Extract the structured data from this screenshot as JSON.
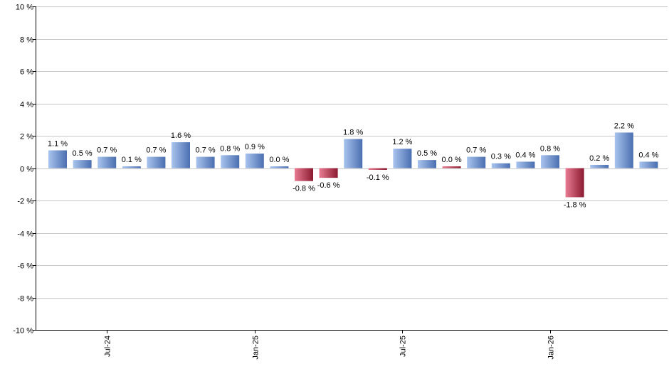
{
  "chart_data": {
    "type": "bar",
    "title": "",
    "xlabel": "",
    "ylabel": "",
    "ylim": [
      -10,
      10
    ],
    "yticks": [
      10,
      8,
      6,
      4,
      2,
      0,
      -2,
      -4,
      -6,
      -8,
      -10
    ],
    "ytick_labels": [
      "10 %",
      "8 %",
      "6 %",
      "4 %",
      "2 %",
      "0 %",
      "-2 %",
      "-4 %",
      "-6 %",
      "-8 %",
      "-10 %"
    ],
    "grid": true,
    "xtick_labels": [
      {
        "label": "Jul-24",
        "index": 2
      },
      {
        "label": "Jan-25",
        "index": 8
      },
      {
        "label": "Jul-25",
        "index": 14
      },
      {
        "label": "Jan-26",
        "index": 20
      }
    ],
    "values": [
      1.1,
      0.5,
      0.7,
      0.1,
      0.7,
      1.6,
      0.7,
      0.8,
      0.9,
      0.0,
      -0.8,
      -0.6,
      1.8,
      -0.1,
      1.2,
      0.5,
      0.0,
      0.7,
      0.3,
      0.4,
      0.8,
      -1.8,
      0.2,
      2.2,
      0.4
    ],
    "value_labels": [
      "1.1 %",
      "0.5 %",
      "0.7 %",
      "0.1 %",
      "0.7 %",
      "1.6 %",
      "0.7 %",
      "0.8 %",
      "0.9 %",
      "0.0 %",
      "-0.8 %",
      "-0.6 %",
      "1.8 %",
      "-0.1 %",
      "1.2 %",
      "0.5 %",
      "0.0 %",
      "0.7 %",
      "0.3 %",
      "0.4 %",
      "0.8 %",
      "-1.8 %",
      "0.2 %",
      "2.2 %",
      "0.4 %"
    ],
    "colors": {
      "positive_light": "#a9c4ee",
      "positive_dark": "#4a6eb0",
      "negative_light": "#e87b92",
      "negative_dark": "#8a1a30",
      "grid": "#c8c8c8",
      "axis": "#000000"
    }
  }
}
